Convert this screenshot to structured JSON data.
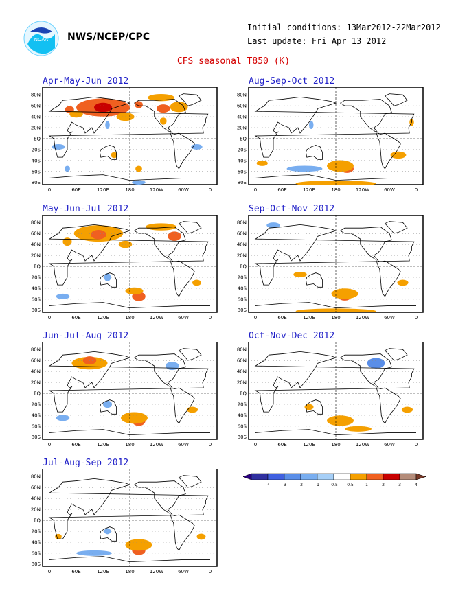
{
  "header": {
    "org": "NWS/NCEP/CPC",
    "initial_conditions": "Initial conditions: 13Mar2012-22Mar2012",
    "last_update": "Last update: Fri Apr 13 2012",
    "title": "CFS seasonal T850 (K)",
    "logo_icon": "noaa-logo-icon"
  },
  "axes": {
    "lat_labels": [
      "80N",
      "60N",
      "40N",
      "20N",
      "EQ",
      "20S",
      "40S",
      "60S",
      "80S"
    ],
    "lon_labels": [
      "0",
      "60E",
      "120E",
      "180",
      "120W",
      "60W",
      "0"
    ]
  },
  "chart_data": {
    "type": "heatmap",
    "title": "CFS seasonal T850 (K)",
    "panels": [
      {
        "label": "Apr-May-Jun 2012",
        "anomalies": [
          {
            "lon": 120,
            "lat": 57,
            "w": 120,
            "h": 28,
            "v": 2
          },
          {
            "lon": 120,
            "lat": 57,
            "w": 40,
            "h": 12,
            "v": 3
          },
          {
            "lon": 45,
            "lat": 53,
            "w": 20,
            "h": 8,
            "v": 2
          },
          {
            "lon": 255,
            "lat": 55,
            "w": 30,
            "h": 10,
            "v": 2
          },
          {
            "lon": 200,
            "lat": 62,
            "w": 18,
            "h": 8,
            "v": 2
          },
          {
            "lon": 290,
            "lat": 58,
            "w": 40,
            "h": 14,
            "v": 1
          },
          {
            "lon": 60,
            "lat": 45,
            "w": 30,
            "h": 8,
            "v": 1
          },
          {
            "lon": 170,
            "lat": 40,
            "w": 40,
            "h": 10,
            "v": 1
          },
          {
            "lon": 250,
            "lat": 75,
            "w": 60,
            "h": 8,
            "v": 1
          },
          {
            "lon": 255,
            "lat": 32,
            "w": 15,
            "h": 8,
            "v": 1
          },
          {
            "lon": 130,
            "lat": 25,
            "w": 10,
            "h": 10,
            "v": -0.5
          },
          {
            "lon": 20,
            "lat": -15,
            "w": 30,
            "h": 5,
            "v": -0.5
          },
          {
            "lon": 330,
            "lat": -15,
            "w": 25,
            "h": 5,
            "v": -0.5
          },
          {
            "lon": 145,
            "lat": -30,
            "w": 15,
            "h": 6,
            "v": 1
          },
          {
            "lon": 200,
            "lat": -55,
            "w": 15,
            "h": 6,
            "v": 1
          },
          {
            "lon": 40,
            "lat": -55,
            "w": 12,
            "h": 6,
            "v": -0.5
          },
          {
            "lon": 200,
            "lat": -80,
            "w": 30,
            "h": 3,
            "v": -0.5
          }
        ]
      },
      {
        "label": "Aug-Sep-Oct 2012",
        "anomalies": [
          {
            "lon": 205,
            "lat": -55,
            "w": 30,
            "h": 10,
            "v": 2
          },
          {
            "lon": 190,
            "lat": -50,
            "w": 60,
            "h": 16,
            "v": 1
          },
          {
            "lon": 110,
            "lat": -55,
            "w": 80,
            "h": 6,
            "v": -0.5
          },
          {
            "lon": 180,
            "lat": -82,
            "w": 180,
            "h": 6,
            "v": 1
          },
          {
            "lon": 320,
            "lat": -30,
            "w": 35,
            "h": 8,
            "v": 1
          },
          {
            "lon": 15,
            "lat": -45,
            "w": 25,
            "h": 5,
            "v": 1
          },
          {
            "lon": 125,
            "lat": 25,
            "w": 10,
            "h": 10,
            "v": -0.5
          },
          {
            "lon": 350,
            "lat": 30,
            "w": 10,
            "h": 8,
            "v": 1
          }
        ]
      },
      {
        "label": "May-Jun-Jul 2012",
        "anomalies": [
          {
            "lon": 110,
            "lat": 60,
            "w": 110,
            "h": 25,
            "v": 1
          },
          {
            "lon": 110,
            "lat": 58,
            "w": 35,
            "h": 12,
            "v": 2
          },
          {
            "lon": 280,
            "lat": 55,
            "w": 30,
            "h": 12,
            "v": 2
          },
          {
            "lon": 250,
            "lat": 72,
            "w": 70,
            "h": 8,
            "v": 1
          },
          {
            "lon": 40,
            "lat": 45,
            "w": 20,
            "h": 10,
            "v": 1
          },
          {
            "lon": 170,
            "lat": 40,
            "w": 30,
            "h": 8,
            "v": 1
          },
          {
            "lon": 200,
            "lat": -55,
            "w": 30,
            "h": 12,
            "v": 2
          },
          {
            "lon": 190,
            "lat": -45,
            "w": 40,
            "h": 8,
            "v": 1
          },
          {
            "lon": 330,
            "lat": -30,
            "w": 20,
            "h": 6,
            "v": 1
          },
          {
            "lon": 30,
            "lat": -55,
            "w": 30,
            "h": 5,
            "v": -0.5
          },
          {
            "lon": 130,
            "lat": -20,
            "w": 15,
            "h": 10,
            "v": -0.5
          }
        ]
      },
      {
        "label": "Sep-Oct-Nov 2012",
        "anomalies": [
          {
            "lon": 200,
            "lat": -55,
            "w": 30,
            "h": 10,
            "v": 2
          },
          {
            "lon": 200,
            "lat": -50,
            "w": 60,
            "h": 14,
            "v": 1
          },
          {
            "lon": 330,
            "lat": -30,
            "w": 25,
            "h": 6,
            "v": 1
          },
          {
            "lon": 180,
            "lat": -82,
            "w": 180,
            "h": 5,
            "v": 1
          },
          {
            "lon": 40,
            "lat": 75,
            "w": 30,
            "h": 5,
            "v": -0.5
          },
          {
            "lon": 100,
            "lat": -15,
            "w": 30,
            "h": 5,
            "v": 1
          }
        ]
      },
      {
        "label": "Jun-Jul-Aug 2012",
        "anomalies": [
          {
            "lon": 90,
            "lat": 55,
            "w": 80,
            "h": 18,
            "v": 1
          },
          {
            "lon": 90,
            "lat": 60,
            "w": 30,
            "h": 10,
            "v": 2
          },
          {
            "lon": 200,
            "lat": -50,
            "w": 30,
            "h": 14,
            "v": 2
          },
          {
            "lon": 190,
            "lat": -45,
            "w": 60,
            "h": 16,
            "v": 1
          },
          {
            "lon": 275,
            "lat": 50,
            "w": 30,
            "h": 10,
            "v": -0.5
          },
          {
            "lon": 30,
            "lat": -45,
            "w": 30,
            "h": 6,
            "v": -0.5
          },
          {
            "lon": 130,
            "lat": -20,
            "w": 20,
            "h": 8,
            "v": -0.5
          },
          {
            "lon": 320,
            "lat": -30,
            "w": 25,
            "h": 6,
            "v": 1
          }
        ]
      },
      {
        "label": "Oct-Nov-Dec 2012",
        "anomalies": [
          {
            "lon": 270,
            "lat": 55,
            "w": 40,
            "h": 14,
            "v": -1
          },
          {
            "lon": 200,
            "lat": -50,
            "w": 30,
            "h": 8,
            "v": 2
          },
          {
            "lon": 190,
            "lat": -50,
            "w": 60,
            "h": 14,
            "v": 1
          },
          {
            "lon": 340,
            "lat": -30,
            "w": 25,
            "h": 6,
            "v": 1
          },
          {
            "lon": 120,
            "lat": -25,
            "w": 20,
            "h": 6,
            "v": 1
          },
          {
            "lon": 230,
            "lat": -65,
            "w": 60,
            "h": 5,
            "v": 1
          }
        ]
      },
      {
        "label": "Jul-Aug-Sep 2012",
        "anomalies": [
          {
            "lon": 200,
            "lat": -55,
            "w": 30,
            "h": 12,
            "v": 2
          },
          {
            "lon": 200,
            "lat": -45,
            "w": 60,
            "h": 16,
            "v": 1
          },
          {
            "lon": 340,
            "lat": -30,
            "w": 20,
            "h": 6,
            "v": 1
          },
          {
            "lon": 20,
            "lat": -30,
            "w": 15,
            "h": 5,
            "v": 1
          },
          {
            "lon": 100,
            "lat": -60,
            "w": 80,
            "h": 5,
            "v": -0.5
          },
          {
            "lon": 130,
            "lat": -20,
            "w": 15,
            "h": 6,
            "v": -0.5
          }
        ]
      }
    ]
  },
  "colorbar": {
    "labels": [
      "-4",
      "-3",
      "-2",
      "-1",
      "-0.5",
      "0.5",
      "1",
      "2",
      "3",
      "4"
    ],
    "colors": [
      "#3030a0",
      "#4060e0",
      "#5a8ee8",
      "#79aef0",
      "#a6cff7",
      "#ffffff",
      "#f5a000",
      "#f06020",
      "#c80000",
      "#b48c7a"
    ]
  },
  "colors": {
    "title_red": "#d40000",
    "panel_title_blue": "#2020c8"
  }
}
